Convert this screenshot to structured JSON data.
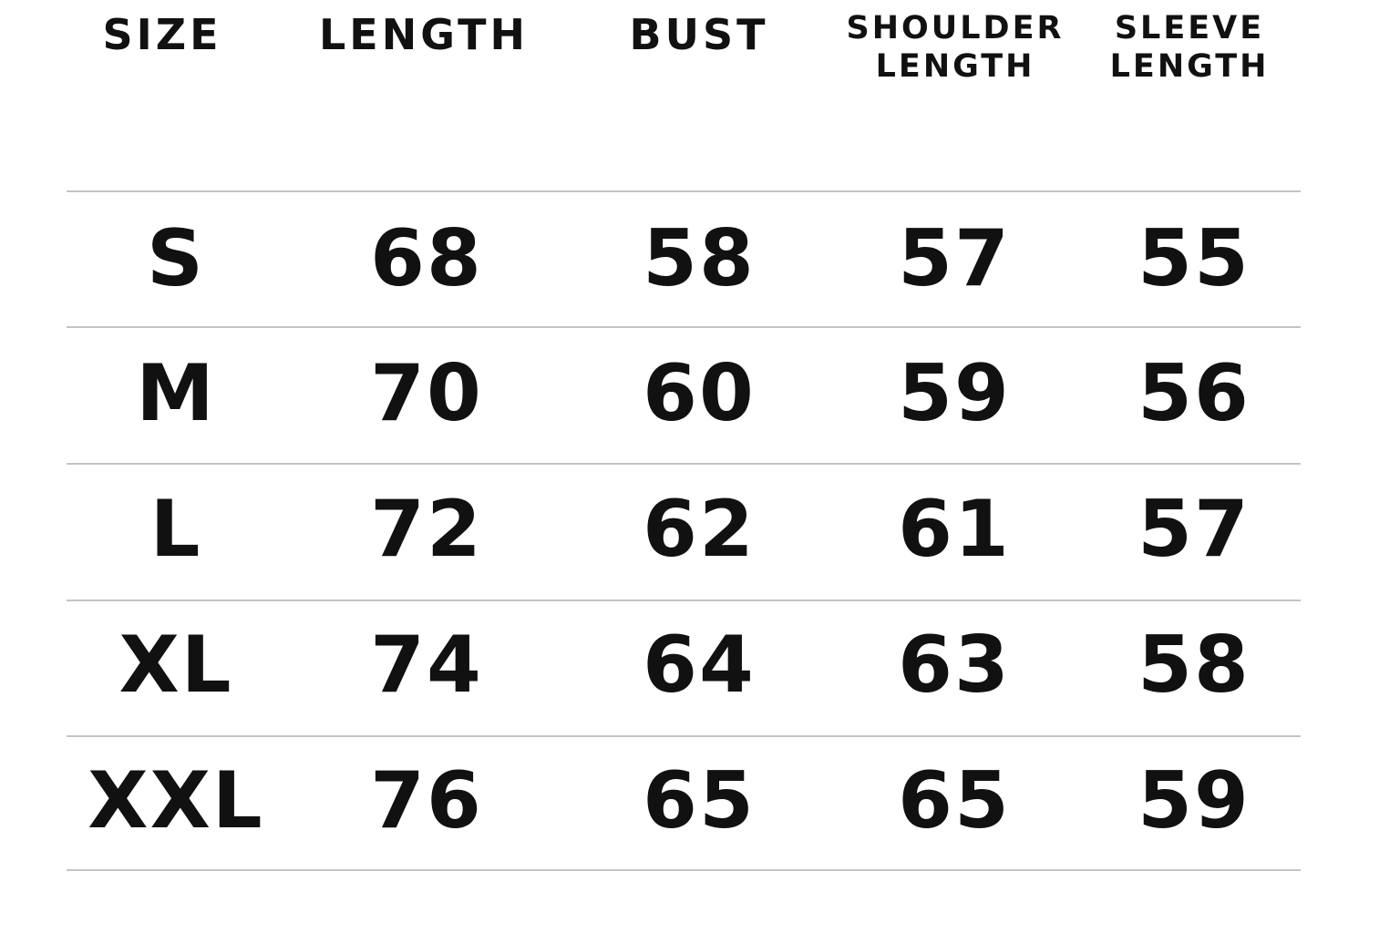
{
  "headers": [
    "SIZE",
    "LENGTH",
    "BUST",
    "SHOULDER\nLENGTH",
    "SLEEVE\nLENGTH"
  ],
  "header_lines": {
    "shoulder": [
      "SHOULDER",
      "LENGTH"
    ],
    "sleeve": [
      "SLEEVE",
      "LENGTH"
    ]
  },
  "rows": [
    [
      "S",
      "68",
      "58",
      "57",
      "55"
    ],
    [
      "M",
      "70",
      "60",
      "59",
      "56"
    ],
    [
      "L",
      "72",
      "62",
      "61",
      "57"
    ],
    [
      "XL",
      "74",
      "64",
      "63",
      "58"
    ],
    [
      "XXL",
      "76",
      "65",
      "65",
      "59"
    ]
  ],
  "colors": {
    "text": "#111111",
    "rule": "#c4c4c4",
    "background": "#ffffff"
  }
}
